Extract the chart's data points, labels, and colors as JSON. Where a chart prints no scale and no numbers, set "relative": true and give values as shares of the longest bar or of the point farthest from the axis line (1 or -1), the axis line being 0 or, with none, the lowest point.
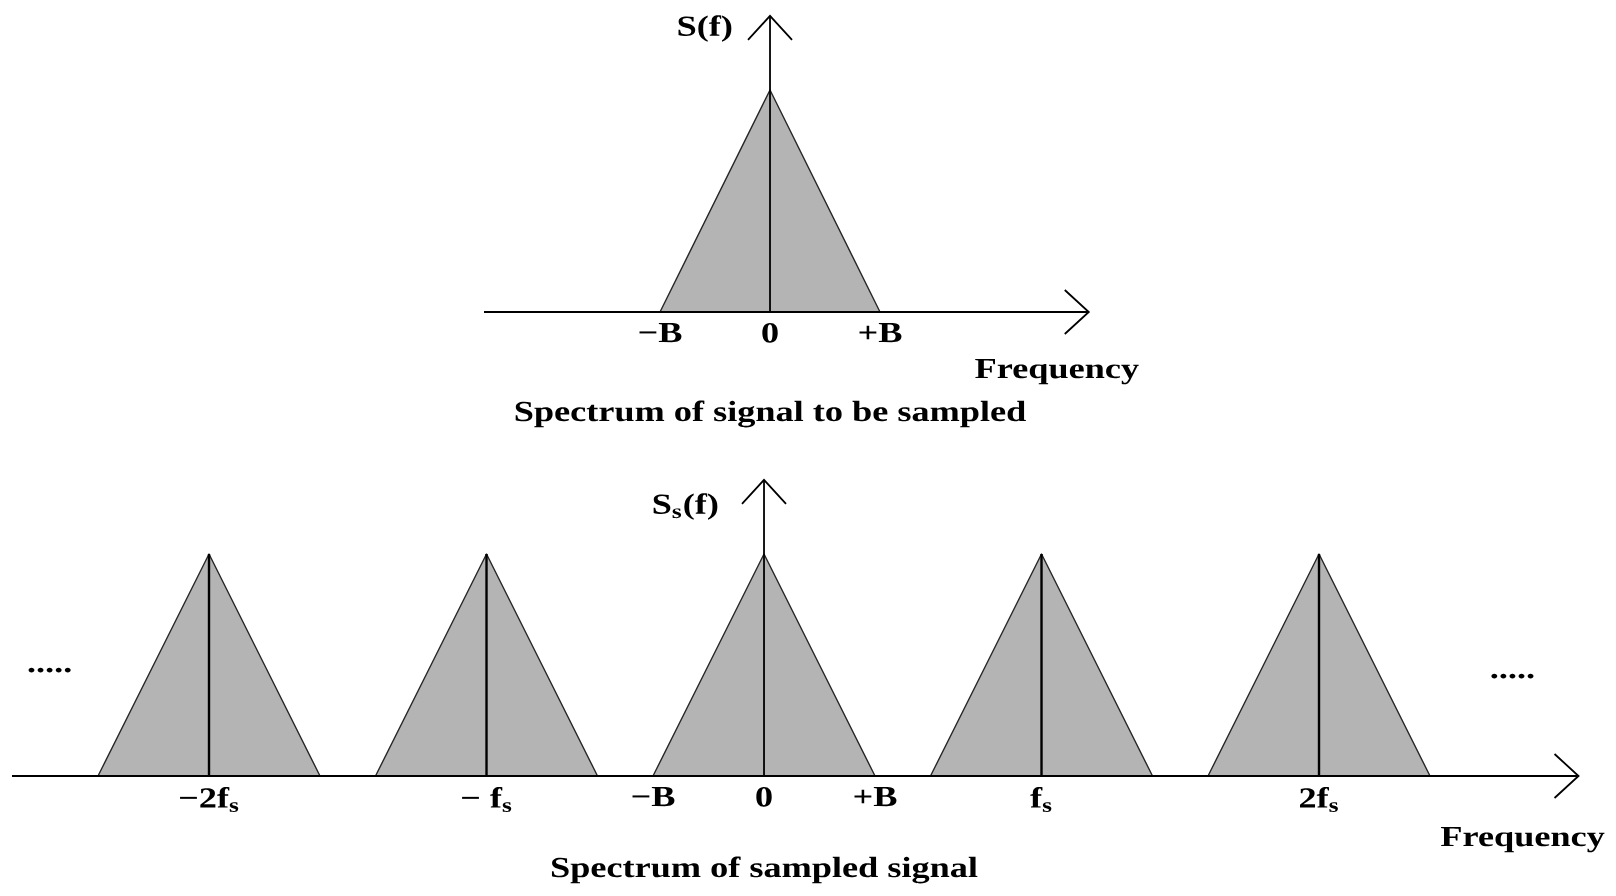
{
  "chart_data": [
    {
      "type": "area",
      "ylabel": "S(f)",
      "xlabel": "Frequency",
      "annotations": [
        "Spectrum of signal to be sampled"
      ],
      "relative": true,
      "categories": [
        "−B",
        "0",
        "+B"
      ],
      "series": [
        {
          "color": "#b4b4b4",
          "values": [
            0,
            1,
            0
          ]
        }
      ]
    },
    {
      "type": "area",
      "ylabel": "S$_{s}$(f)",
      "xlabel": "Frequency",
      "annotations": [
        "Spectrum of sampled signal",
        ".....",
        "....."
      ],
      "relative": true,
      "categories": [
        null,
        null,
        "−2f$_{s}$",
        null,
        null,
        null,
        null,
        "− f$_{s}$",
        null,
        null,
        "−B",
        null,
        "0",
        null,
        "+B",
        null,
        null,
        "f$_{s}$",
        null,
        null,
        null,
        null,
        "2f$_{s}$",
        null,
        null
      ],
      "series": [
        {
          "color": "#b4b4b4",
          "values": [
            0,
            0.5,
            1,
            0.5,
            0,
            0,
            0.5,
            1,
            0.5,
            0,
            0,
            0.5,
            1,
            0.5,
            0,
            0,
            0.5,
            1,
            0.5,
            0,
            0,
            0.5,
            1,
            0.5,
            0
          ]
        },
        {
          "type": "bar",
          "color": "#000000",
          "values": [
            null,
            null,
            1,
            null,
            null,
            null,
            null,
            1,
            null,
            null,
            null,
            null,
            null,
            null,
            null,
            null,
            null,
            1,
            null,
            null,
            null,
            null,
            1,
            null,
            null
          ]
        }
      ]
    }
  ]
}
